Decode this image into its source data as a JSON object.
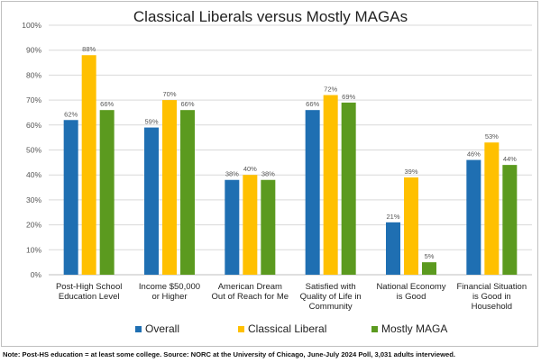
{
  "chart_data": {
    "type": "bar",
    "title": "Classical Liberals versus Mostly MAGAs",
    "xlabel": "",
    "ylabel": "",
    "ylim": [
      0,
      100
    ],
    "yticks": [
      "0%",
      "10%",
      "20%",
      "30%",
      "40%",
      "50%",
      "60%",
      "70%",
      "80%",
      "90%",
      "100%"
    ],
    "grid": true,
    "legend_position": "bottom",
    "categories": [
      [
        "Post-High School",
        "Education Level"
      ],
      [
        "Income $50,000",
        "or Higher"
      ],
      [
        "American Dream",
        "Out of Reach for Me"
      ],
      [
        "Satisfied with",
        "Quality of Life in",
        "Community"
      ],
      [
        "National Economy",
        "is Good"
      ],
      [
        "Financial Situation",
        "is Good in",
        "Household"
      ]
    ],
    "series": [
      {
        "name": "Overall",
        "color": "#1f6fb2",
        "values": [
          62,
          59,
          38,
          66,
          21,
          46
        ],
        "labels": [
          "62%",
          "59%",
          "38%",
          "66%",
          "21%",
          "46%"
        ]
      },
      {
        "name": "Classical Liberal",
        "color": "#ffc000",
        "values": [
          88,
          70,
          40,
          72,
          39,
          53
        ],
        "labels": [
          "88%",
          "70%",
          "40%",
          "72%",
          "39%",
          "53%"
        ]
      },
      {
        "name": "Mostly MAGA",
        "color": "#5b9a1f",
        "values": [
          66,
          66,
          38,
          69,
          5,
          44
        ],
        "labels": [
          "66%",
          "66%",
          "38%",
          "69%",
          "5%",
          "44%"
        ]
      }
    ]
  },
  "note": "Note: Post-HS education = at least some college. Source: NORC at the University of Chicago, June-July 2024 Poll, 3,031 adults interviewed."
}
